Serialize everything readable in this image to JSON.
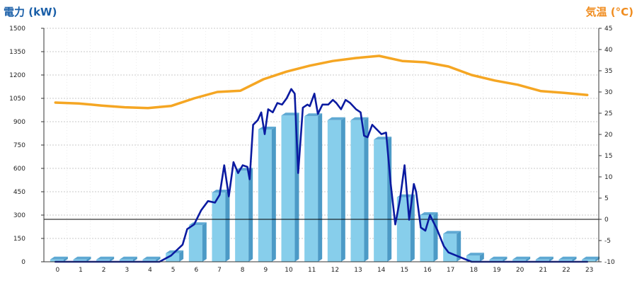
{
  "chart_data": {
    "type": "bar+line",
    "categories": [
      "0",
      "1",
      "2",
      "3",
      "4",
      "5",
      "6",
      "7",
      "8",
      "9",
      "10",
      "11",
      "12",
      "13",
      "14",
      "15",
      "16",
      "17",
      "18",
      "19",
      "20",
      "21",
      "22",
      "23"
    ],
    "left_axis": {
      "title": "電力 (kW)",
      "min": 0,
      "max": 1500,
      "step": 150,
      "color": "#1a5fa8",
      "ticks": [
        "0",
        "150",
        "300",
        "450",
        "600",
        "750",
        "900",
        "1050",
        "1200",
        "1350",
        "1500"
      ]
    },
    "right_axis": {
      "title": "気温 (°C)",
      "min": -10,
      "max": 45,
      "step": 5,
      "color": "#f08c1e",
      "ticks": [
        "-10",
        "-5",
        "0",
        "5",
        "10",
        "15",
        "20",
        "25",
        "30",
        "35",
        "40",
        "45"
      ]
    },
    "grid": true,
    "reference_line": {
      "axis": "right",
      "value": 0
    },
    "bars": {
      "axis": "left",
      "color": "#87ceeb",
      "side_color": "#4c9ac6",
      "top_color": "#5fa9d3",
      "values": [
        15,
        15,
        15,
        15,
        15,
        55,
        235,
        445,
        585,
        850,
        940,
        935,
        910,
        910,
        785,
        415,
        300,
        180,
        40,
        15,
        15,
        15,
        15,
        15
      ]
    },
    "power_line": {
      "axis": "left",
      "color": "#0a1aa0",
      "x": [
        0,
        1,
        2,
        3,
        4,
        4.5,
        5,
        5.5,
        5.7,
        6,
        6.3,
        6.6,
        6.9,
        7.1,
        7.3,
        7.5,
        7.7,
        7.9,
        8.1,
        8.3,
        8.4,
        8.55,
        8.75,
        8.9,
        9.05,
        9.2,
        9.4,
        9.6,
        9.8,
        10,
        10.2,
        10.35,
        10.5,
        10.7,
        10.9,
        11,
        11.2,
        11.35,
        11.55,
        11.8,
        12,
        12.15,
        12.35,
        12.55,
        12.75,
        13,
        13.2,
        13.35,
        13.5,
        13.7,
        13.9,
        14.1,
        14.3,
        14.5,
        14.7,
        14.9,
        15.1,
        15.3,
        15.5,
        15.6,
        15.8,
        16,
        16.2,
        16.5,
        16.8,
        17,
        17.5,
        18,
        18.5,
        19,
        20,
        21,
        22,
        23
      ],
      "y": [
        0,
        0,
        0,
        0,
        0,
        0,
        40,
        110,
        210,
        240,
        330,
        390,
        380,
        430,
        620,
        420,
        640,
        570,
        620,
        610,
        530,
        880,
        910,
        960,
        820,
        980,
        960,
        1020,
        1010,
        1050,
        1110,
        1080,
        570,
        990,
        1010,
        1000,
        1080,
        950,
        1010,
        1010,
        1040,
        1020,
        980,
        1040,
        1020,
        980,
        960,
        810,
        800,
        880,
        850,
        820,
        830,
        500,
        240,
        400,
        620,
        270,
        500,
        450,
        220,
        200,
        300,
        210,
        100,
        60,
        30,
        0,
        0,
        0,
        0,
        0,
        0,
        0
      ]
    },
    "temperature_line": {
      "axis": "right",
      "color": "#f5a623",
      "values": [
        27.5,
        27.3,
        26.8,
        26.4,
        26.2,
        26.7,
        28.5,
        30,
        30.3,
        33,
        34.8,
        36.2,
        37.3,
        38,
        38.5,
        37.3,
        37,
        36,
        34,
        32.7,
        31.7,
        30.2,
        29.8,
        29.3
      ]
    }
  }
}
